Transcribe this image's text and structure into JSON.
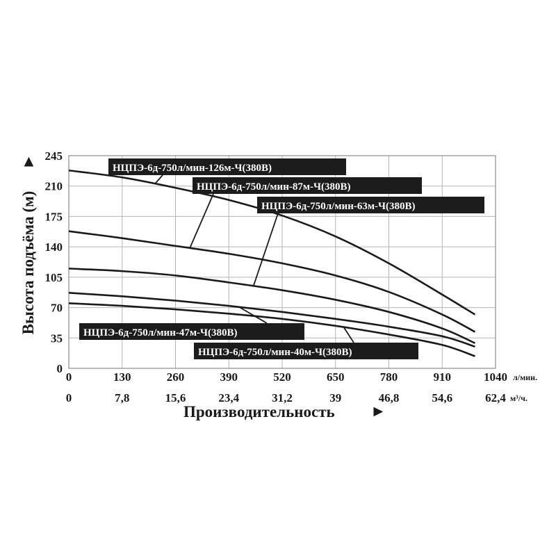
{
  "chart_data": {
    "type": "line",
    "ylabel": "Высота подъёма (м)",
    "ylabel_arrow": "►",
    "xlabel": "Производительность",
    "xlabel_arrow": "►",
    "x_unit_primary": "л/мин.",
    "x_unit_secondary": "м³/ч.",
    "xlim": [
      0,
      1040
    ],
    "ylim": [
      0,
      245
    ],
    "y_ticks": [
      "0",
      "35",
      "70",
      "105",
      "140",
      "175",
      "210",
      "245"
    ],
    "x_ticks_primary": [
      "0",
      "130",
      "260",
      "390",
      "520",
      "650",
      "780",
      "910",
      "1040"
    ],
    "x_ticks_secondary": [
      "0",
      "7,8",
      "15,6",
      "23,4",
      "31,2",
      "39",
      "46,8",
      "54,6",
      "62,4"
    ],
    "grid": true,
    "series": [
      {
        "name": "НЦПЭ-6д-750л/мин-126м-Ч(380В)",
        "x": [
          0,
          130,
          260,
          390,
          520,
          650,
          780,
          910,
          990
        ],
        "y": [
          228,
          220,
          208,
          194,
          176,
          152,
          121,
          85,
          62
        ]
      },
      {
        "name": "НЦПЭ-6д-750л/мин-87м-Ч(380В)",
        "x": [
          0,
          130,
          260,
          390,
          520,
          650,
          780,
          910,
          990
        ],
        "y": [
          158,
          150,
          141,
          132,
          121,
          107,
          88,
          62,
          42
        ]
      },
      {
        "name": "НЦПЭ-6д-750л/мин-63м-Ч(380В)",
        "x": [
          0,
          130,
          260,
          390,
          520,
          650,
          780,
          910,
          990
        ],
        "y": [
          115,
          112,
          107,
          99,
          90,
          79,
          65,
          46,
          29
        ]
      },
      {
        "name": "НЦПЭ-6д-750л/мин-47м-Ч(380В)",
        "x": [
          0,
          130,
          260,
          390,
          520,
          650,
          780,
          910,
          990
        ],
        "y": [
          87,
          83,
          78,
          72,
          65,
          57,
          48,
          37,
          25
        ]
      },
      {
        "name": "НЦПЭ-6д-750л/мин-40м-Ч(380В)",
        "x": [
          0,
          130,
          260,
          390,
          520,
          650,
          780,
          910,
          990
        ],
        "y": [
          75,
          72,
          68,
          63,
          57,
          49,
          39,
          27,
          14
        ]
      }
    ]
  }
}
